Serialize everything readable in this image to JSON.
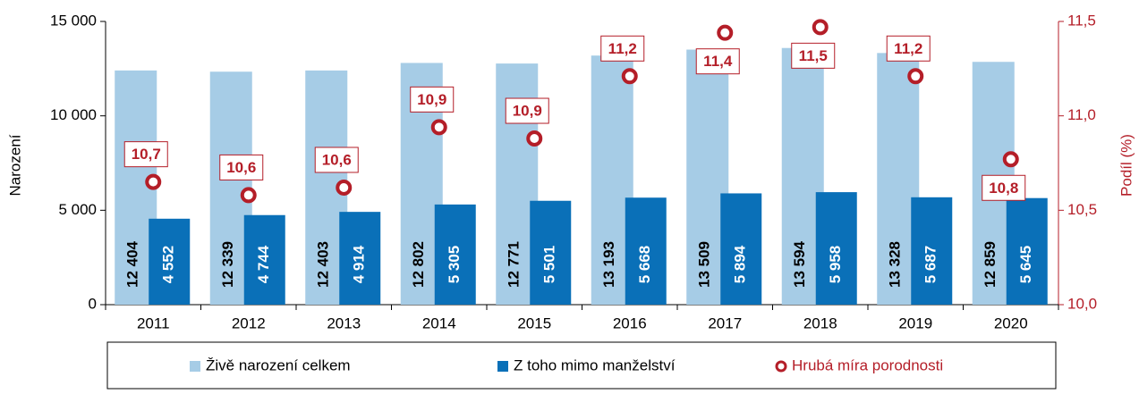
{
  "chart_data": {
    "type": "bar",
    "categories": [
      "2011",
      "2012",
      "2013",
      "2014",
      "2015",
      "2016",
      "2017",
      "2018",
      "2019",
      "2020"
    ],
    "y_label": "Narození",
    "y2_label": "Podíl (%)",
    "ylim": [
      0,
      15000
    ],
    "yticks": [
      0,
      {
        "value": 5000,
        "label": "5 000"
      },
      {
        "value": 10000,
        "label": "10 000"
      },
      {
        "value": 15000,
        "label": "15 000"
      }
    ],
    "y2lim": [
      10,
      11.5
    ],
    "y2ticks": [
      {
        "value": 10,
        "label": "10,0"
      },
      {
        "value": 10.5,
        "label": "10,5"
      },
      {
        "value": 11,
        "label": "11,0"
      },
      {
        "value": 11.5,
        "label": "11,5"
      }
    ],
    "grid": false,
    "series": [
      {
        "name": "Živě narození celkem",
        "type": "bar",
        "color": "#a6cce6",
        "values": [
          12404,
          12339,
          12403,
          12802,
          12771,
          13193,
          13509,
          13594,
          13328,
          12859
        ],
        "value_labels": [
          "12 404",
          "12 339",
          "12 403",
          "12 802",
          "12 771",
          "13 193",
          "13 509",
          "13 594",
          "13 328",
          "12 859"
        ]
      },
      {
        "name": "Z toho mimo manželství",
        "type": "bar",
        "color": "#0a70b8",
        "values": [
          4552,
          4744,
          4914,
          5305,
          5501,
          5668,
          5894,
          5958,
          5687,
          5645
        ],
        "value_labels": [
          "4 552",
          "4 744",
          "4 914",
          "5 305",
          "5 501",
          "5 668",
          "5 894",
          "5 958",
          "5 687",
          "5 645"
        ]
      },
      {
        "name": "Hrubá míra porodnosti",
        "type": "scatter",
        "axis": "y2",
        "color": "#b41e28",
        "values": [
          10.65,
          10.58,
          10.62,
          10.94,
          10.88,
          11.21,
          11.44,
          11.47,
          11.21,
          10.77
        ],
        "value_labels": [
          "10,7",
          "10,6",
          "10,6",
          "10,9",
          "10,9",
          "11,2",
          "11,4",
          "11,5",
          "11,2",
          "10,8"
        ]
      }
    ]
  }
}
